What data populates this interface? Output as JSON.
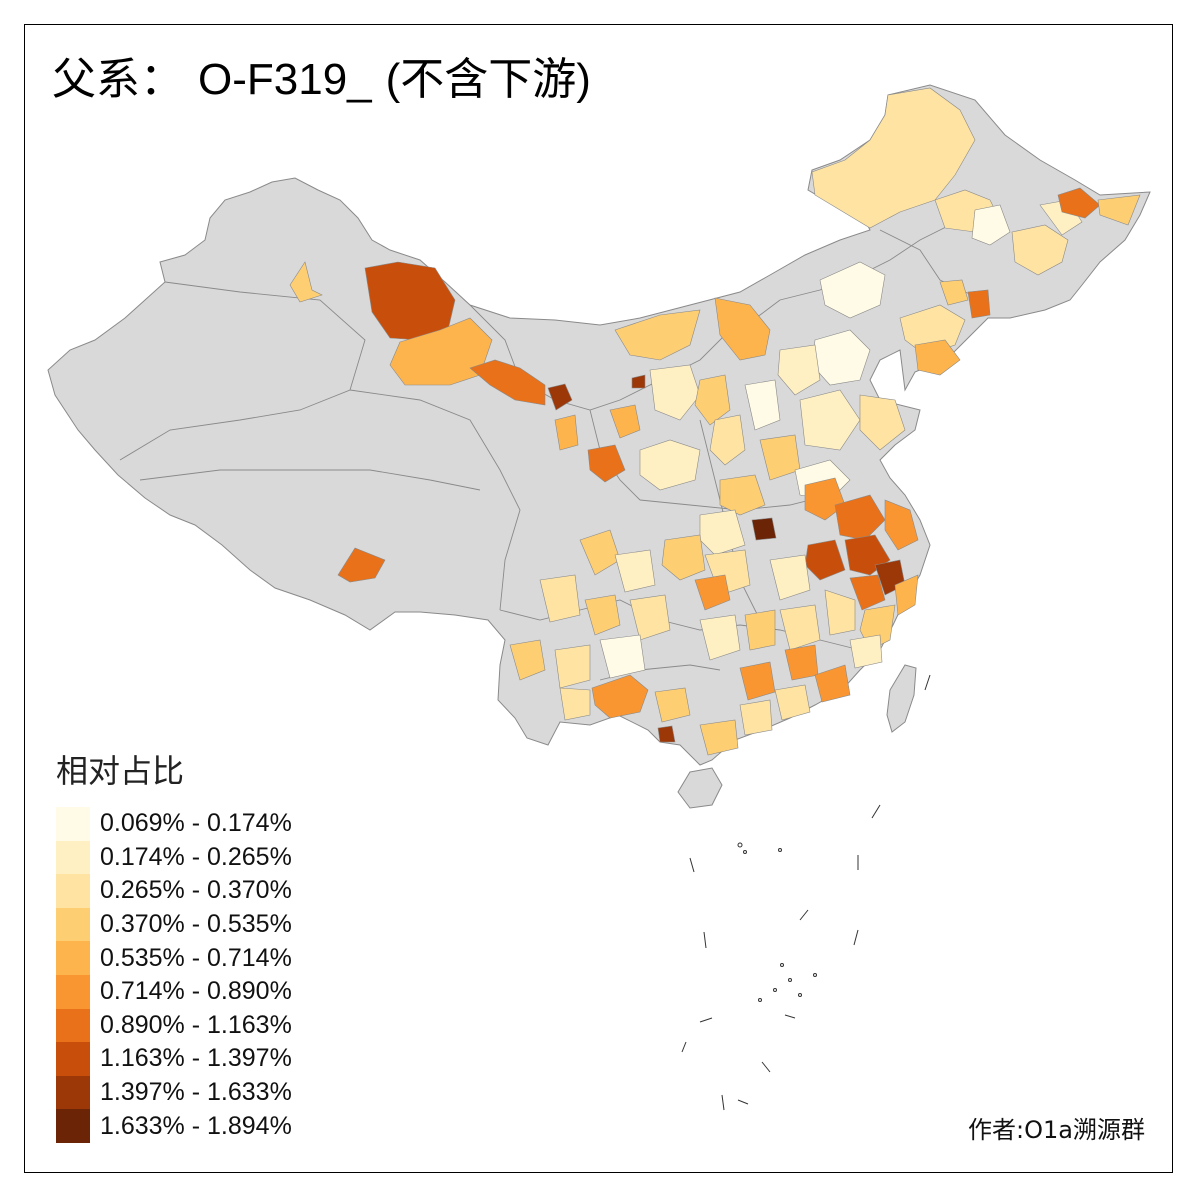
{
  "title": {
    "prefix": "父系：",
    "code": "O-F319_",
    "suffix": "(不含下游)"
  },
  "legend": {
    "title": "相对占比",
    "items": [
      {
        "label": "0.069% - 0.174%",
        "color": "#fffbe6"
      },
      {
        "label": "0.174% - 0.265%",
        "color": "#fff0c4"
      },
      {
        "label": "0.265% - 0.370%",
        "color": "#fee3a2"
      },
      {
        "label": "0.370% - 0.535%",
        "color": "#fece72"
      },
      {
        "label": "0.535% - 0.714%",
        "color": "#feb44c"
      },
      {
        "label": "0.714% - 0.890%",
        "color": "#f99632"
      },
      {
        "label": "0.890% - 1.163%",
        "color": "#e8711a"
      },
      {
        "label": "1.163% - 1.397%",
        "color": "#c84f0b"
      },
      {
        "label": "1.397% - 1.633%",
        "color": "#9c3708"
      },
      {
        "label": "1.633% - 1.894%",
        "color": "#6b2406"
      }
    ]
  },
  "author": "作者:O1a溯源群",
  "colors": {
    "no_data": "#d9d9d9",
    "border": "#8a8a8a",
    "frame": "#000000"
  }
}
